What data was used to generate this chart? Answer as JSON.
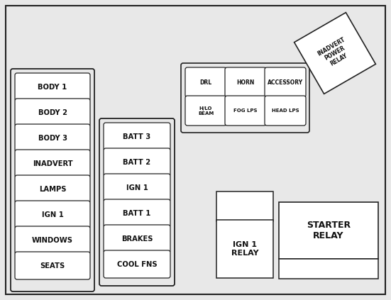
{
  "bg_color": "#e8e8e8",
  "border_color": "#222222",
  "box_fill": "#f0f0ee",
  "box_fill2": "#ffffff",
  "text_color": "#111111",
  "figsize": [
    5.51,
    4.23
  ],
  "dpi": 100,
  "col1_boxes": [
    "BODY 1",
    "BODY 2",
    "BODY 3",
    "INADVERT",
    "LAMPS",
    "IGN 1",
    "WINDOWS",
    "SEATS"
  ],
  "col2_boxes": [
    "BATT 3",
    "BATT 2",
    "IGN 1",
    "BATT 1",
    "BRAKES",
    "COOL FNS"
  ],
  "grid_top_row": [
    "DRL",
    "HORN",
    "ACCESSORY"
  ],
  "grid_bot_row": [
    "H/LO\nBEAM",
    "FOG LPS",
    "HEAD LPS"
  ],
  "ign1_relay_label": "IGN 1\nRELAY",
  "starter_relay_label": "STARTER\nRELAY",
  "inadvert_label": "INADVERT\nPOWER\nRELAY"
}
